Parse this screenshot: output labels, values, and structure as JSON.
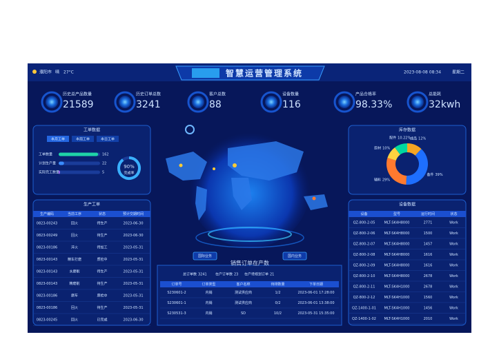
{
  "header": {
    "city": "濮阳市",
    "weather": "晴",
    "temperature": "27°C",
    "title": "智慧运营管理系统",
    "datetime": "2023-08-08 08:34",
    "weekday": "星期二"
  },
  "kpis": [
    {
      "label": "历史总产品数量",
      "value": "21589"
    },
    {
      "label": "历史订单总数",
      "value": "3241"
    },
    {
      "label": "客户总数",
      "value": "88"
    },
    {
      "label": "设备数量",
      "value": "116"
    },
    {
      "label": "产品合格率",
      "value": "98.33%"
    },
    {
      "label": "总能耗",
      "value": "32kwh"
    }
  ],
  "work_orders": {
    "title": "工单数据",
    "tabs": [
      "本月工单",
      "本周工单",
      "本日工单"
    ],
    "categories": [
      "工单数量",
      "计划生产量",
      "实际完工数量"
    ],
    "values": [
      162,
      22,
      5
    ],
    "xlim": [
      0,
      170
    ],
    "gauge": {
      "value": 90,
      "label": "90%",
      "caption": "完成率"
    }
  },
  "production": {
    "title": "生产工单",
    "columns": [
      "生产编码",
      "当前工序",
      "状态",
      "预计交期时间"
    ],
    "rows": [
      [
        "0823-00243",
        "回火",
        "待生产",
        "2023-06-30"
      ],
      [
        "0823-00249",
        "回火",
        "待生产",
        "2023-06-30"
      ],
      [
        "0823-00186",
        "淬火",
        "待加工",
        "2023-05-31"
      ],
      [
        "0823-00143",
        "精车打磨",
        "质检中",
        "2023-05-31"
      ],
      [
        "0823-00143",
        "水磨削",
        "待生产",
        "2023-05-31"
      ],
      [
        "0823-00143",
        "精磨削",
        "待生产",
        "2023-05-31"
      ],
      [
        "0823-00186",
        "磨车",
        "质检中",
        "2023-05-31"
      ],
      [
        "0823-00186",
        "回火",
        "待生产",
        "2023-05-31"
      ],
      [
        "0823-00245",
        "回火",
        "已完成",
        "2023-06-30"
      ]
    ]
  },
  "inventory": {
    "title": "库存数据",
    "type": "pie",
    "categories": [
      "成品",
      "备件",
      "辅料",
      "原材",
      "配件"
    ],
    "values": [
      12,
      39,
      29,
      10,
      10.22
    ],
    "value_labels": [
      "12%",
      "39%",
      "29%",
      "10%",
      "10.22%"
    ],
    "colors": [
      "#f5a623",
      "#1e6fff",
      "#ff7a2f",
      "#ffd23f",
      "#00d8a0"
    ]
  },
  "devices": {
    "title": "设备数据",
    "columns": [
      "设备",
      "型号",
      "运行时间",
      "状态"
    ],
    "rows": [
      [
        "QZ-800-2-05",
        "MLT-SK4H8000",
        "2771",
        "Work"
      ],
      [
        "QZ-800-2-06",
        "MLT-SK4H8000",
        "1500",
        "Work"
      ],
      [
        "QZ-800-2-07",
        "MLT-SK4H8000",
        "1457",
        "Work"
      ],
      [
        "QZ-800-2-08",
        "MLT-SK4H8000",
        "1616",
        "Work"
      ],
      [
        "QZ-800-2-09",
        "MLT-SK4H8000",
        "1616",
        "Work"
      ],
      [
        "QZ-800-2-10",
        "MLT-SK4H8000",
        "2678",
        "Work"
      ],
      [
        "QZ-800-2-11",
        "MLT-SK4H1000",
        "2678",
        "Work"
      ],
      [
        "QZ-800-2-12",
        "MLT-SK4H1000",
        "1560",
        "Work"
      ],
      [
        "QZ-1400-1-01",
        "MLT-SK4H1000",
        "1456",
        "Work"
      ],
      [
        "QZ-1400-1-02",
        "MLT-SK4H1000",
        "2010",
        "Work"
      ]
    ]
  },
  "map": {
    "buttons": [
      "国际业务",
      "国内业务"
    ]
  },
  "sales": {
    "title": "销售订单在产数",
    "stats": [
      {
        "label": "总订单数",
        "value": "3241"
      },
      {
        "label": "在产订单数",
        "value": "23"
      },
      {
        "label": "在产待规划订单",
        "value": "21"
      }
    ],
    "columns": [
      "订单号",
      "订单类型",
      "客户名称",
      "待排数量",
      "下单日期"
    ],
    "rows": [
      [
        "S230601-2",
        "内销",
        "测试供应商",
        "1/2",
        "2023-06-01 17:28:00"
      ],
      [
        "S230601-1",
        "内销",
        "测试供应商",
        "0/2",
        "2023-06-01 13:38:00"
      ],
      [
        "S230531-3",
        "内销",
        "SD",
        "10/2",
        "2023-05-31 15:35:00"
      ]
    ]
  }
}
